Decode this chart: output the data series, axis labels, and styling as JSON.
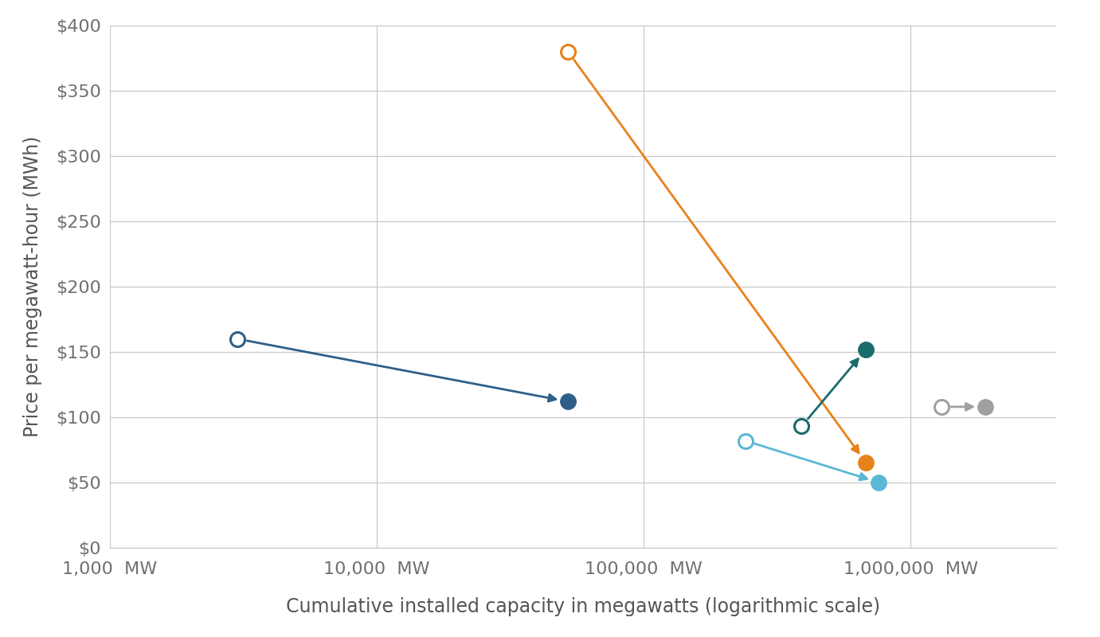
{
  "xlabel": "Cumulative installed capacity in megawatts (logarithmic scale)",
  "ylabel": "Price per megawatt-hour (MWh)",
  "xlim_log": [
    1000,
    3500000
  ],
  "ylim": [
    0,
    400
  ],
  "yticks": [
    0,
    50,
    100,
    150,
    200,
    250,
    300,
    350,
    400
  ],
  "ytick_labels": [
    "$0",
    "$50",
    "$100",
    "$150",
    "$200",
    "$250",
    "$300",
    "$350",
    "$400"
  ],
  "xticks": [
    1000,
    10000,
    100000,
    1000000
  ],
  "xtick_labels": [
    "1,000  MW",
    "10,000  MW",
    "100,000  MW",
    "1,000,000  MW"
  ],
  "series": [
    {
      "name": "dark_blue",
      "color": "#2E5F8A",
      "start_x": 3000,
      "start_y": 160,
      "end_x": 52000,
      "end_y": 112
    },
    {
      "name": "orange",
      "color": "#E8821A",
      "start_x": 52000,
      "start_y": 380,
      "end_x": 680000,
      "end_y": 65
    },
    {
      "name": "teal",
      "color": "#1A6B6B",
      "start_x": 390000,
      "start_y": 93,
      "end_x": 680000,
      "end_y": 152
    },
    {
      "name": "light_blue",
      "color": "#5BB8D4",
      "start_x": 240000,
      "start_y": 82,
      "end_x": 760000,
      "end_y": 50
    },
    {
      "name": "gray",
      "color": "#A0A0A0",
      "start_x": 1300000,
      "start_y": 108,
      "end_x": 1900000,
      "end_y": 108
    }
  ],
  "background_color": "#FFFFFF",
  "grid_color": "#C8C8C8",
  "tick_label_color": "#707070",
  "axis_label_color": "#555555",
  "marker_size": 14,
  "open_marker_size": 13,
  "line_width": 2.0
}
